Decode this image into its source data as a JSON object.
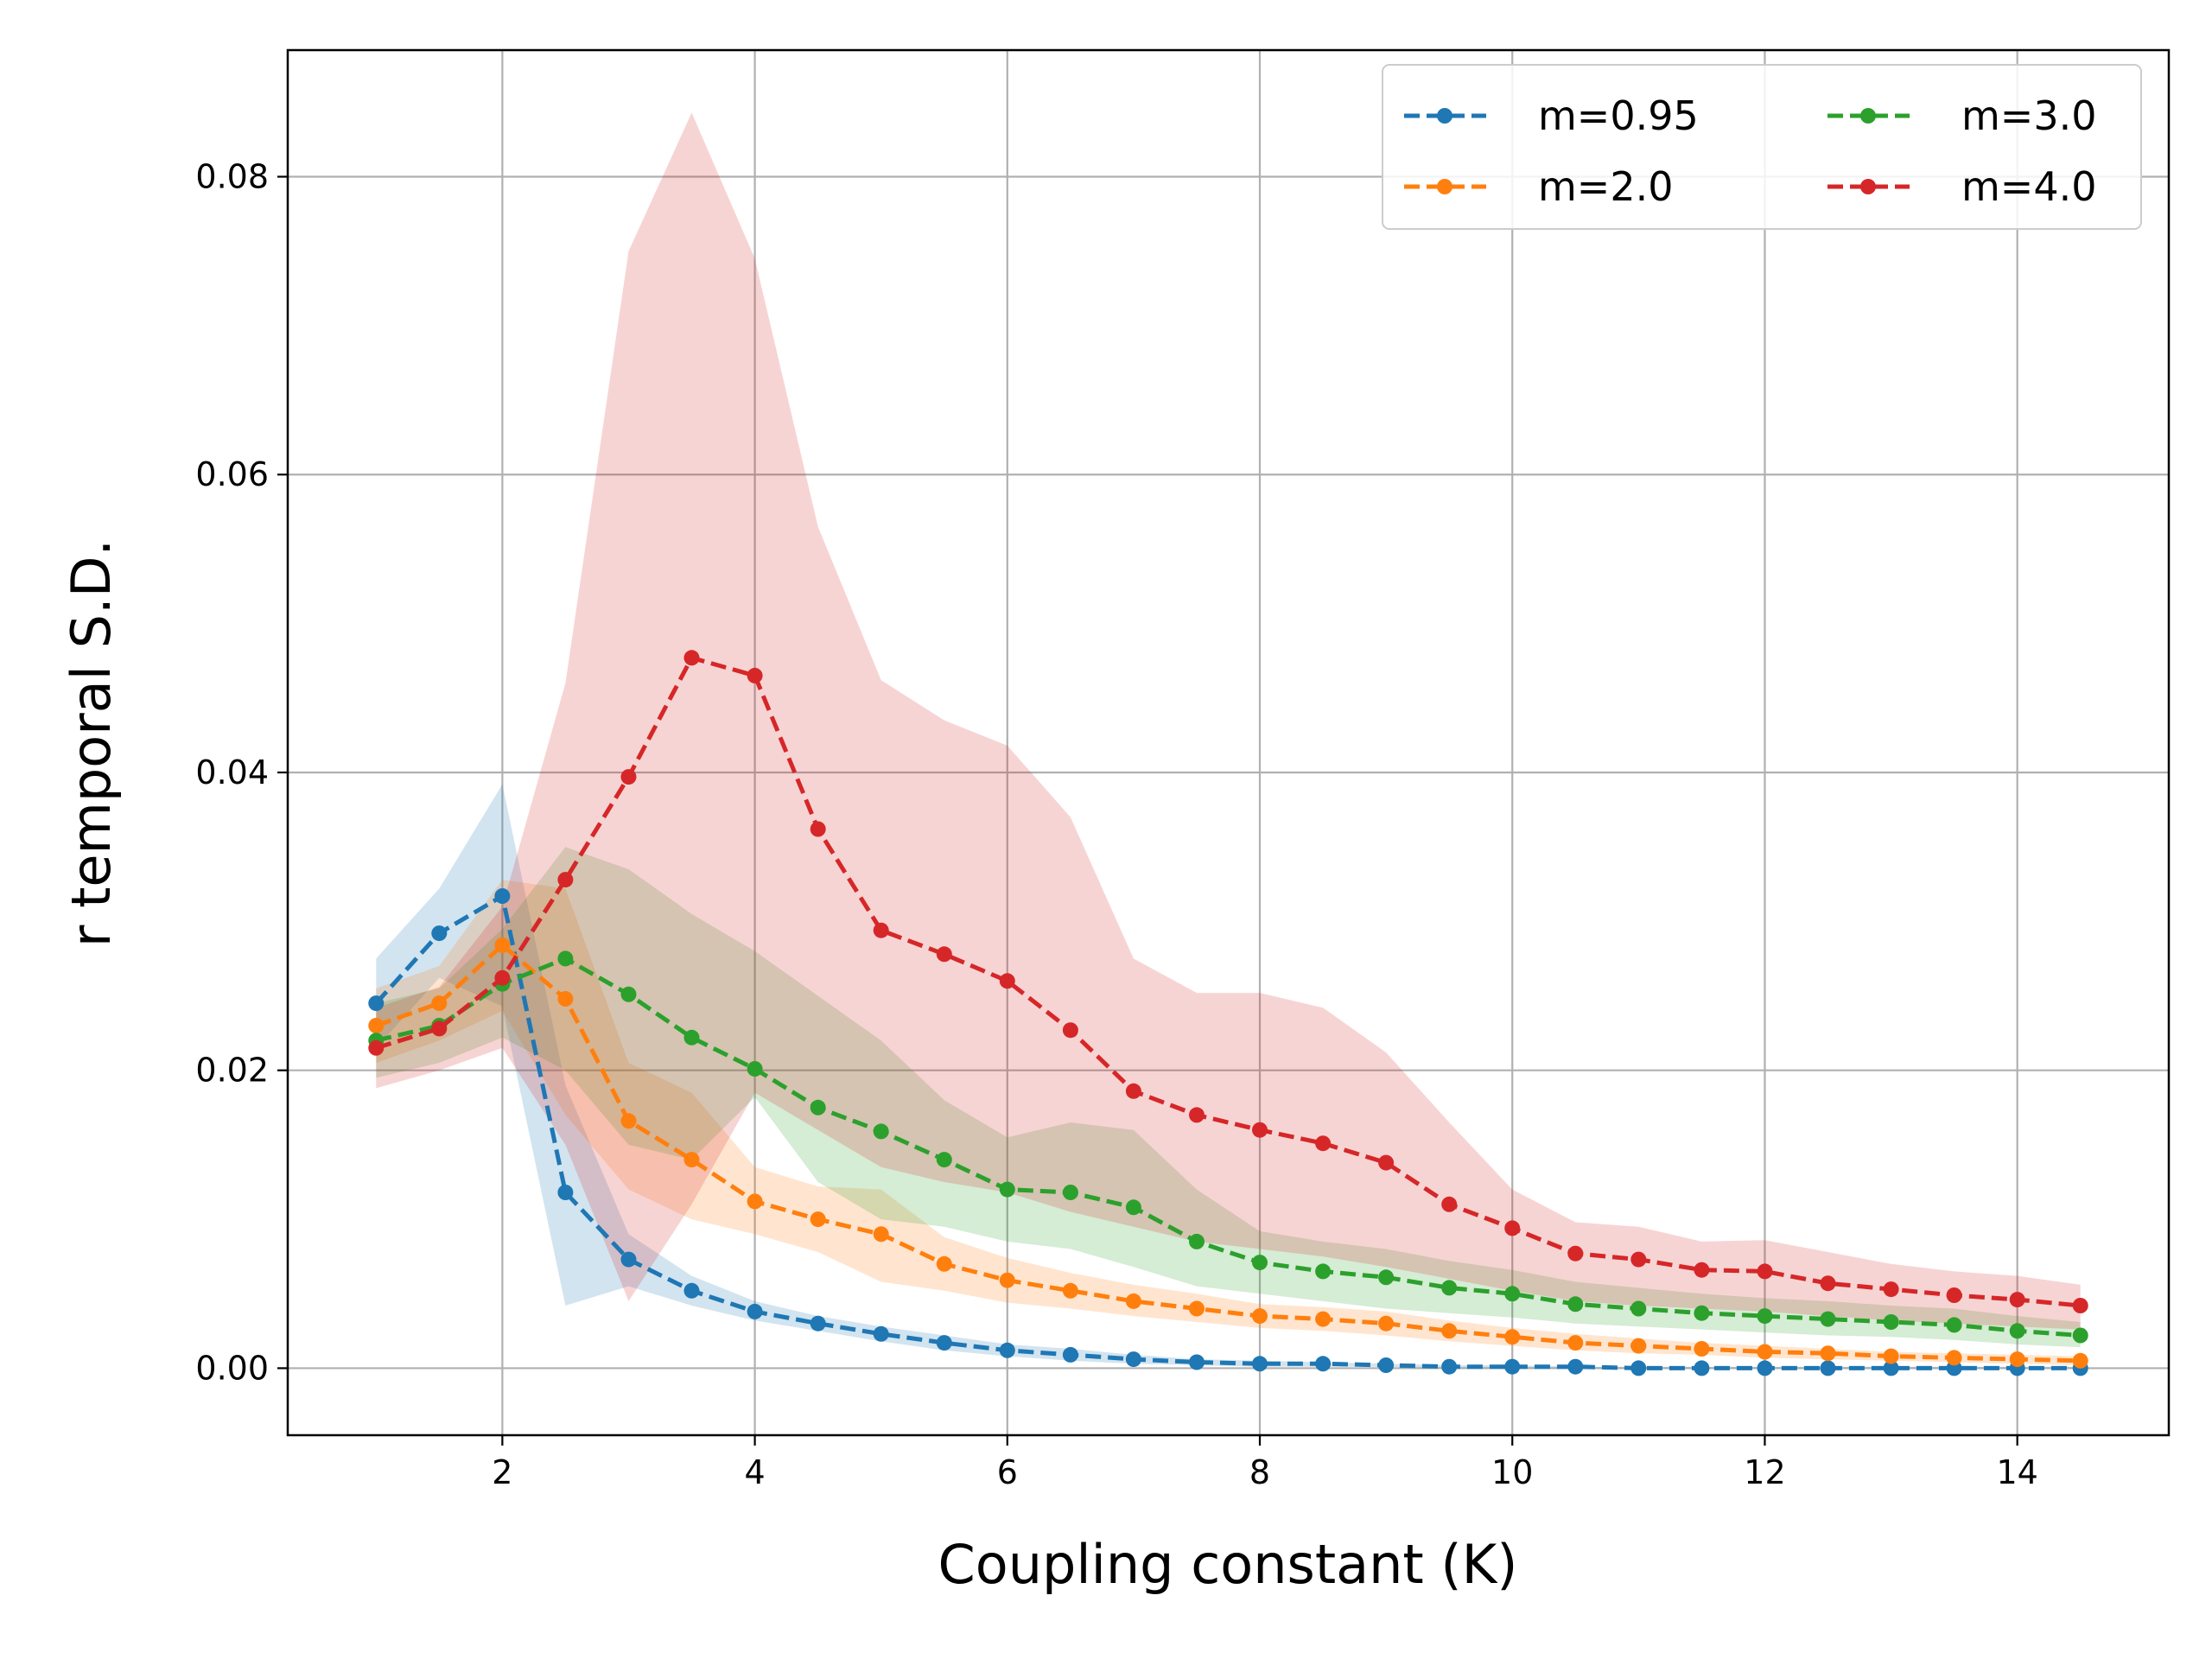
{
  "chart_data": {
    "type": "line",
    "xlabel": "Coupling constant (K)",
    "ylabel": "r temporal S.D.",
    "xlim": [
      0.3,
      15.2
    ],
    "ylim": [
      -0.0045,
      0.0885
    ],
    "grid": true,
    "legend_position": "top-right",
    "legend_columns": 2,
    "x_ticks": [
      2,
      4,
      6,
      8,
      10,
      12,
      14
    ],
    "y_ticks": [
      0.0,
      0.02,
      0.04,
      0.06,
      0.08
    ],
    "x_tick_labels": [
      "2",
      "4",
      "6",
      "8",
      "10",
      "12",
      "14"
    ],
    "y_tick_labels": [
      "0.00",
      "0.02",
      "0.04",
      "0.06",
      "0.08"
    ],
    "x": [
      1.0,
      1.5,
      2.0,
      2.5,
      3.0,
      3.5,
      4.0,
      4.5,
      5.0,
      5.5,
      6.0,
      6.5,
      7.0,
      7.5,
      8.0,
      8.5,
      9.0,
      9.5,
      10.0,
      10.5,
      11.0,
      11.5,
      12.0,
      12.5,
      13.0,
      13.5,
      14.0,
      14.5
    ],
    "series": [
      {
        "name": "m=0.95",
        "color": "#1f77b4",
        "values": [
          0.0245,
          0.0292,
          0.0317,
          0.0118,
          0.0073,
          0.0052,
          0.0038,
          0.003,
          0.0023,
          0.0017,
          0.0012,
          0.0009,
          0.0006,
          0.0004,
          0.0003,
          0.0003,
          0.0002,
          0.0001,
          0.0001,
          0.0001,
          0.0,
          0.0,
          0.0,
          0.0,
          0.0,
          0.0,
          0.0,
          0.0
        ],
        "lower": [
          0.0215,
          0.0262,
          0.0243,
          0.0042,
          0.0055,
          0.0042,
          0.0032,
          0.0025,
          0.0018,
          0.0012,
          0.0008,
          0.0005,
          0.0003,
          0.0002,
          0.0001,
          0.0001,
          0.0001,
          0.0,
          0.0,
          0.0,
          0.0,
          0.0,
          0.0,
          0.0,
          0.0,
          0.0,
          0.0,
          0.0
        ],
        "upper": [
          0.0275,
          0.0322,
          0.0392,
          0.019,
          0.009,
          0.0062,
          0.0045,
          0.0035,
          0.0028,
          0.0022,
          0.0016,
          0.0013,
          0.0009,
          0.0006,
          0.0005,
          0.0004,
          0.0003,
          0.0002,
          0.0002,
          0.0001,
          0.0001,
          0.0001,
          0.0001,
          0.0001,
          0.0001,
          0.0001,
          0.0001,
          0.0001
        ]
      },
      {
        "name": "m=2.0",
        "color": "#ff7f0e",
        "values": [
          0.023,
          0.0245,
          0.0284,
          0.0248,
          0.0166,
          0.014,
          0.0112,
          0.01,
          0.009,
          0.007,
          0.0059,
          0.0052,
          0.0045,
          0.004,
          0.0035,
          0.0033,
          0.003,
          0.0025,
          0.0021,
          0.0017,
          0.0015,
          0.0013,
          0.0011,
          0.001,
          0.0008,
          0.0007,
          0.0006,
          0.0005
        ],
        "lower": [
          0.0205,
          0.022,
          0.024,
          0.017,
          0.012,
          0.01,
          0.009,
          0.0078,
          0.0058,
          0.0052,
          0.0044,
          0.004,
          0.0035,
          0.0031,
          0.0027,
          0.0025,
          0.0022,
          0.0018,
          0.0015,
          0.0012,
          0.001,
          0.0009,
          0.0007,
          0.0006,
          0.0005,
          0.0004,
          0.0003,
          0.0002
        ],
        "upper": [
          0.0255,
          0.027,
          0.0328,
          0.0322,
          0.0205,
          0.0185,
          0.0135,
          0.0122,
          0.012,
          0.0088,
          0.0074,
          0.0064,
          0.0056,
          0.005,
          0.0043,
          0.0041,
          0.0038,
          0.0032,
          0.0027,
          0.0023,
          0.002,
          0.0017,
          0.0015,
          0.0013,
          0.0011,
          0.001,
          0.0009,
          0.0008
        ]
      },
      {
        "name": "m=3.0",
        "color": "#2ca02c",
        "values": [
          0.022,
          0.023,
          0.0258,
          0.0275,
          0.0251,
          0.0222,
          0.0201,
          0.0175,
          0.0159,
          0.014,
          0.012,
          0.0118,
          0.0108,
          0.0085,
          0.0071,
          0.0065,
          0.0061,
          0.0054,
          0.005,
          0.0043,
          0.004,
          0.0037,
          0.0035,
          0.0033,
          0.0031,
          0.0029,
          0.0025,
          0.0022
        ],
        "lower": [
          0.0195,
          0.0205,
          0.0222,
          0.02,
          0.015,
          0.014,
          0.0182,
          0.0125,
          0.01,
          0.0095,
          0.0085,
          0.008,
          0.0068,
          0.0055,
          0.005,
          0.0045,
          0.004,
          0.0037,
          0.0034,
          0.003,
          0.0028,
          0.0026,
          0.0024,
          0.0022,
          0.0021,
          0.0019,
          0.0016,
          0.0014
        ],
        "upper": [
          0.0245,
          0.0255,
          0.0295,
          0.035,
          0.0335,
          0.0305,
          0.028,
          0.025,
          0.022,
          0.018,
          0.0155,
          0.0165,
          0.016,
          0.012,
          0.0092,
          0.0085,
          0.008,
          0.0072,
          0.0066,
          0.0058,
          0.0054,
          0.005,
          0.0047,
          0.0045,
          0.0042,
          0.004,
          0.0035,
          0.0031
        ]
      },
      {
        "name": "m=4.0",
        "color": "#d62728",
        "values": [
          0.0215,
          0.0228,
          0.0262,
          0.0328,
          0.0397,
          0.0477,
          0.0465,
          0.0362,
          0.0294,
          0.0278,
          0.026,
          0.0227,
          0.0186,
          0.017,
          0.016,
          0.0151,
          0.0138,
          0.011,
          0.0094,
          0.0077,
          0.0073,
          0.0066,
          0.0065,
          0.0057,
          0.0053,
          0.0049,
          0.0046,
          0.0042
        ],
        "lower": [
          0.0188,
          0.02,
          0.0215,
          0.015,
          0.0045,
          0.011,
          0.0185,
          0.016,
          0.0135,
          0.0125,
          0.0118,
          0.0105,
          0.0095,
          0.0085,
          0.008,
          0.0075,
          0.0068,
          0.006,
          0.0052,
          0.0045,
          0.0042,
          0.004,
          0.0038,
          0.0035,
          0.0032,
          0.003,
          0.0028,
          0.0026
        ],
        "upper": [
          0.0242,
          0.0256,
          0.031,
          0.046,
          0.075,
          0.0843,
          0.0745,
          0.0565,
          0.0462,
          0.0435,
          0.0418,
          0.037,
          0.0275,
          0.0252,
          0.0252,
          0.0242,
          0.0212,
          0.0165,
          0.012,
          0.0098,
          0.0095,
          0.0085,
          0.0086,
          0.0078,
          0.007,
          0.0065,
          0.0062,
          0.0056
        ]
      }
    ]
  }
}
